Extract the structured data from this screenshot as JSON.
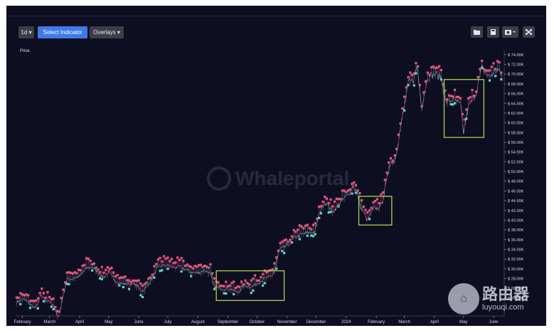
{
  "toolbar": {
    "interval": "1d",
    "indicator": "Select Indicator",
    "overlays": "Overlays",
    "icons": [
      "folder-icon",
      "save-icon",
      "camera-icon",
      "fullscreen-icon"
    ]
  },
  "watermark": "Whaleportal",
  "site_watermark": {
    "cn": "路由器",
    "url": "luyouqi.com"
  },
  "colors": {
    "background": "#0e0e22",
    "bullish": "#5fd6c8",
    "bearish": "#e8557a",
    "highlight": "#a9d64a"
  },
  "chart_data": {
    "type": "line",
    "ylabel": "Price",
    "ylim": [
      21500,
      75000
    ],
    "y_ticks": [
      24000,
      26000,
      28000,
      30000,
      32000,
      34000,
      36000,
      38000,
      40000,
      42000,
      44000,
      46000,
      48000,
      50000,
      52000,
      54000,
      56000,
      58000,
      60000,
      62000,
      64000,
      66000,
      68000,
      70000,
      72000,
      74000
    ],
    "y_tick_labels": [
      "$ 24.00K",
      "$ 26.00K",
      "$ 28.00K",
      "$ 30.00K",
      "$ 32.00K",
      "$ 34.00K",
      "$ 36.00K",
      "$ 38.00K",
      "$ 40.00K",
      "$ 42.00K",
      "$ 44.00K",
      "$ 46.00K",
      "$ 48.00K",
      "$ 50.00K",
      "$ 52.00K",
      "$ 54.00K",
      "$ 56.00K",
      "$ 58.00K",
      "$ 60.00K",
      "$ 62.00K",
      "$ 64.00K",
      "$ 66.00K",
      "$ 68.00K",
      "$ 70.00K",
      "$ 72.00K",
      "$ 74.00K"
    ],
    "xlim": [
      "2023-01-25",
      "2024-06-12"
    ],
    "x_ticks": [
      "2023-02-01",
      "2023-03-01",
      "2023-04-01",
      "2023-05-01",
      "2023-06-01",
      "2023-07-01",
      "2023-08-01",
      "2023-09-01",
      "2023-10-01",
      "2023-11-01",
      "2023-12-01",
      "2024-01-01",
      "2024-02-01",
      "2024-03-01",
      "2024-04-01",
      "2024-05-01",
      "2024-06-01"
    ],
    "x_tick_labels": [
      "February",
      "March",
      "April",
      "May",
      "June",
      "July",
      "August",
      "September",
      "October",
      "November",
      "December",
      "2024",
      "February",
      "March",
      "April",
      "May",
      "June"
    ],
    "series": [
      {
        "x": [
          "2023-01-26",
          "2023-02-01",
          "2023-02-05",
          "2023-02-10",
          "2023-02-15",
          "2023-02-20",
          "2023-02-25",
          "2023-03-01",
          "2023-03-05",
          "2023-03-09",
          "2023-03-11",
          "2023-03-15",
          "2023-03-19",
          "2023-03-24",
          "2023-04-01",
          "2023-04-08",
          "2023-04-14",
          "2023-04-20",
          "2023-04-26",
          "2023-05-01",
          "2023-05-08",
          "2023-05-15",
          "2023-05-22",
          "2023-05-28",
          "2023-06-05",
          "2023-06-10",
          "2023-06-16",
          "2023-06-20",
          "2023-06-25",
          "2023-07-01",
          "2023-07-08",
          "2023-07-14",
          "2023-07-20",
          "2023-07-26",
          "2023-08-01",
          "2023-08-08",
          "2023-08-14",
          "2023-08-17",
          "2023-08-22",
          "2023-08-29",
          "2023-09-05",
          "2023-09-11",
          "2023-09-18",
          "2023-09-25",
          "2023-10-01",
          "2023-10-08",
          "2023-10-16",
          "2023-10-20",
          "2023-10-24",
          "2023-11-01",
          "2023-11-09",
          "2023-11-15",
          "2023-11-22",
          "2023-11-30",
          "2023-12-05",
          "2023-12-10",
          "2023-12-18",
          "2023-12-25",
          "2024-01-02",
          "2024-01-08",
          "2024-01-11",
          "2024-01-16",
          "2024-01-23",
          "2024-01-29",
          "2024-02-05",
          "2024-02-09",
          "2024-02-15",
          "2024-02-20",
          "2024-02-28",
          "2024-03-05",
          "2024-03-10",
          "2024-03-14",
          "2024-03-19",
          "2024-03-25",
          "2024-04-01",
          "2024-04-08",
          "2024-04-13",
          "2024-04-20",
          "2024-04-28",
          "2024-05-01",
          "2024-05-06",
          "2024-05-14",
          "2024-05-20",
          "2024-05-27",
          "2024-06-05",
          "2024-06-10"
        ],
        "y": [
          23100,
          23800,
          23500,
          22500,
          22000,
          24500,
          23400,
          23500,
          22400,
          20300,
          20500,
          24600,
          27800,
          28000,
          28500,
          30200,
          30400,
          29200,
          28300,
          29300,
          27500,
          27000,
          26900,
          26800,
          25400,
          26500,
          28500,
          30200,
          30700,
          30700,
          30300,
          30400,
          29800,
          29300,
          29200,
          29700,
          29100,
          26600,
          26100,
          25900,
          25800,
          25100,
          26600,
          26300,
          27000,
          27900,
          28500,
          30000,
          33900,
          34700,
          36500,
          37000,
          37400,
          37700,
          41900,
          43800,
          41800,
          43500,
          45000,
          47000,
          46200,
          42800,
          39900,
          42300,
          42700,
          45200,
          51700,
          52200,
          61100,
          68000,
          68800,
          71500,
          63400,
          69500,
          70000,
          69500,
          64000,
          64900,
          63600,
          58000,
          63200,
          66200,
          71300,
          69400,
          71000,
          69600
        ]
      }
    ]
  }
}
